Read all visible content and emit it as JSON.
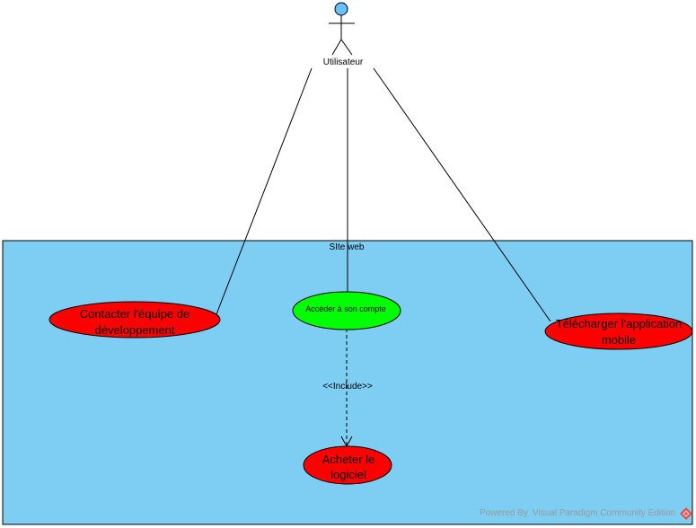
{
  "actor": {
    "name": "Utilisateur"
  },
  "system": {
    "title": "SIte web"
  },
  "use_cases": {
    "contact": {
      "line1": "Contacter l'équipe de",
      "line2": "développement"
    },
    "acceder": {
      "label": "Accéder à son compte"
    },
    "telecharger": {
      "line1": "Télécharger l'application",
      "line2": "mobile"
    },
    "acheter": {
      "line1": "Acheter le",
      "line2": "logiciel"
    }
  },
  "relations": {
    "include_label": "<<Include>>"
  },
  "watermark": {
    "part1": "Powered By",
    "part2": "Visual Paradigm Community Edition"
  },
  "colors": {
    "system_fill": "#7ecef4",
    "use_case_red": "#ff0000",
    "use_case_green": "#00ff00",
    "actor_head": "#66c2ff",
    "logo": "#d9534f"
  }
}
